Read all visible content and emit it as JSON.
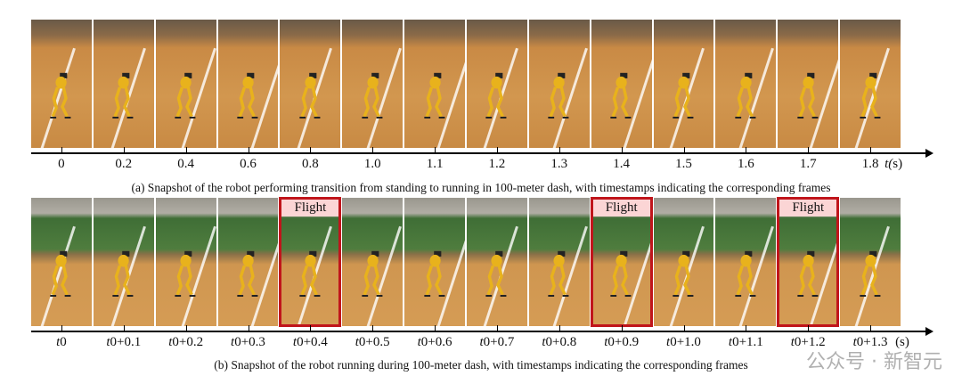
{
  "panel_a": {
    "ticks": [
      "0",
      "0.2",
      "0.4",
      "0.6",
      "0.8",
      "1.0",
      "1.1",
      "1.2",
      "1.3",
      "1.4",
      "1.5",
      "1.6",
      "1.7",
      "1.8"
    ],
    "unit": "t(s)",
    "caption": "(a) Snapshot of the robot performing transition from standing to running in 100-meter dash, with timestamps indicating the corresponding frames"
  },
  "panel_b": {
    "ticks": [
      "t0",
      "t0+0.1",
      "t0+0.2",
      "t0+0.3",
      "t0+0.4",
      "t0+0.5",
      "t0+0.6",
      "t0+0.7",
      "t0+0.8",
      "t0+0.9",
      "t0+1.0",
      "t0+1.1",
      "t0+1.2",
      "t0+1.3"
    ],
    "unit": "(s)",
    "flight_label": "Flight",
    "flight_frames": [
      4,
      9,
      12
    ],
    "caption": "(b) Snapshot of the robot running during 100-meter dash, with timestamps indicating the corresponding frames"
  },
  "watermark": "公众号 · 新智元",
  "colors": {
    "flight_border": "#c0151b",
    "flight_fill": "#fbd5d5",
    "robot": "#e8b21c"
  }
}
